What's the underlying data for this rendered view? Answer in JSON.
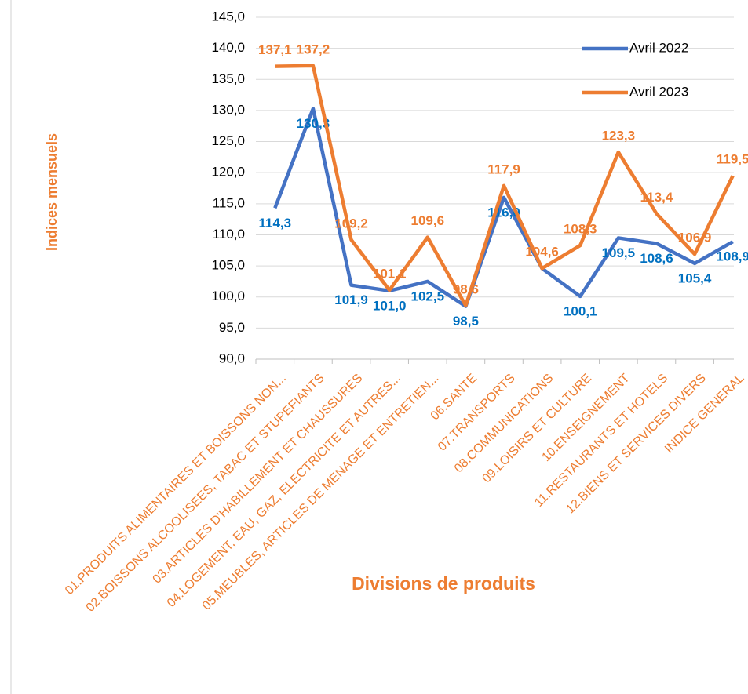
{
  "chart_data": {
    "type": "line",
    "x_label": "Divisions de produits",
    "y_label": "Indices mensuels",
    "categories": [
      "01.PRODUITS ALIMENTAIRES ET BOISSONS NON...",
      "02.BOISSONS ALCOOLISEES, TABAC ET STUPEFIANTS",
      "03.ARTICLES D'HABILLEMENT ET CHAUSSURES",
      "04.LOGEMENT, EAU, GAZ, ELECTRICITE ET AUTRES...",
      "05.MEUBLES, ARTICLES DE MENAGE ET ENTRETIEN...",
      "06.SANTE",
      "07.TRANSPORTS",
      "08.COMMUNICATIONS",
      "09.LOISIRS ET CULTURE",
      "10.ENSEIGNEMENT",
      "11.RESTAURANTS ET HOTELS",
      "12.BIENS ET SERVICES DIVERS",
      "INDICE GENERAL"
    ],
    "series": [
      {
        "name": "Avril 2022",
        "color": "#4472c4",
        "label_color": "#0070c0",
        "values": [
          114.3,
          130.3,
          101.9,
          101.0,
          102.5,
          98.5,
          116.0,
          104.6,
          100.1,
          109.5,
          108.6,
          105.4,
          108.9
        ],
        "value_labels": [
          "114,3",
          "130,3",
          "101,9",
          "101,0",
          "102,5",
          "98,5",
          "116,0",
          null,
          "100,1",
          "109,5",
          "108,6",
          "105,4",
          "108,9"
        ]
      },
      {
        "name": "Avril 2023",
        "color": "#ed7d31",
        "label_color": "#ed7d31",
        "values": [
          137.1,
          137.2,
          109.2,
          101.1,
          109.6,
          98.6,
          117.9,
          104.6,
          108.3,
          123.3,
          113.4,
          106.9,
          119.5
        ],
        "value_labels": [
          "137,1",
          "137,2",
          "109,2",
          "101,1",
          "109,6",
          "98,6",
          "117,9",
          "104,6",
          "108,3",
          "123,3",
          "113,4",
          "106,9",
          "119,5"
        ]
      }
    ],
    "ylim": [
      90,
      145
    ],
    "yticks": [
      {
        "value": 90,
        "label": "90,0"
      },
      {
        "value": 95,
        "label": "95,0"
      },
      {
        "value": 100,
        "label": "100,0"
      },
      {
        "value": 105,
        "label": "105,0"
      },
      {
        "value": 110,
        "label": "110,0"
      },
      {
        "value": 115,
        "label": "115,0"
      },
      {
        "value": 120,
        "label": "120,0"
      },
      {
        "value": 125,
        "label": "125,0"
      },
      {
        "value": 130,
        "label": "130,0"
      },
      {
        "value": 135,
        "label": "135,0"
      },
      {
        "value": 140,
        "label": "140,0"
      },
      {
        "value": 145,
        "label": "145,0"
      }
    ],
    "grid": true,
    "legend": "upper right"
  }
}
